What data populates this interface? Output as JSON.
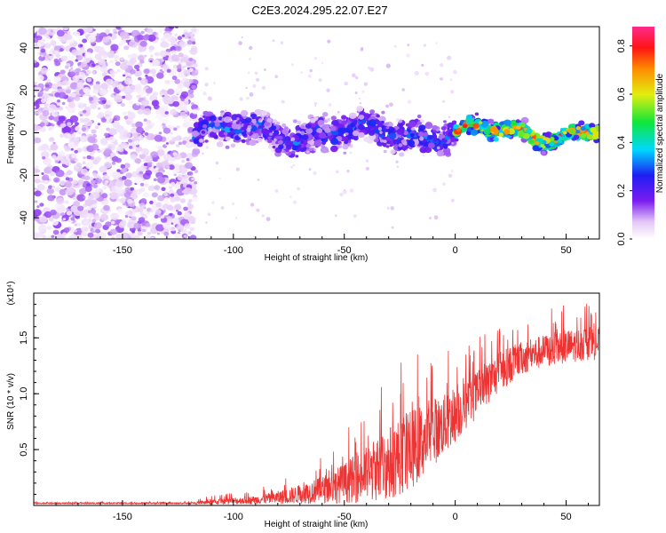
{
  "page": {
    "title": "C2E3.2024.295.22.07.E27"
  },
  "chart_data": [
    {
      "type": "heatmap",
      "xlabel": "Height of straight line (km)",
      "ylabel": "Frequency (Hz)",
      "xlim": [
        -190,
        65
      ],
      "ylim": [
        -50,
        50
      ],
      "xticks": [
        -150,
        -100,
        -50,
        0,
        50
      ],
      "yticks": [
        -40,
        -20,
        0,
        20,
        40
      ],
      "grid": false,
      "colorbar": {
        "label": "Normalized spectral amplitude",
        "range": [
          0.0,
          0.88
        ],
        "ticks": [
          "0.0",
          "0.2",
          "0.4",
          "0.6",
          "0.8"
        ]
      },
      "bands": [
        {
          "x_range": [
            -190,
            -117
          ],
          "freq_center": 0,
          "freq_halfwidth": 50,
          "amplitude": [
            0.03,
            0.15
          ],
          "note": "noise"
        },
        {
          "x_range": [
            -117,
            0
          ],
          "freq_center": 0,
          "freq_halfwidth": 8,
          "amplitude": [
            0.1,
            0.35
          ]
        },
        {
          "x_range": [
            0,
            65
          ],
          "freq_center": 0,
          "freq_halfwidth": 4,
          "amplitude": [
            0.3,
            0.85
          ]
        }
      ]
    },
    {
      "type": "line",
      "xlabel": "Height of straight line (km)",
      "ylabel": "SNR (10 * v/v)",
      "yscale_label": "(x10⁴)",
      "xlim": [
        -190,
        65
      ],
      "ylim": [
        0.0,
        1.9
      ],
      "ylim_units": "x10^4",
      "xticks": [
        -150,
        -100,
        -50,
        0,
        50
      ],
      "yticks": [
        "0.5",
        "1.0",
        "1.5"
      ],
      "color": "#ee3333",
      "grid": false,
      "series": [
        {
          "x": [
            -190,
            -150,
            -120,
            -110,
            -100,
            -90,
            -80,
            -70,
            -60,
            -50,
            -40,
            -30,
            -20,
            -10,
            0,
            10,
            20,
            30,
            40,
            50,
            60,
            65
          ],
          "mean": [
            0.02,
            0.02,
            0.02,
            0.03,
            0.04,
            0.05,
            0.07,
            0.1,
            0.14,
            0.2,
            0.28,
            0.38,
            0.5,
            0.65,
            0.8,
            1.0,
            1.2,
            1.32,
            1.38,
            1.42,
            1.45,
            1.45
          ],
          "spread": [
            0.01,
            0.01,
            0.01,
            0.04,
            0.05,
            0.06,
            0.1,
            0.14,
            0.2,
            0.3,
            0.42,
            0.55,
            0.6,
            0.5,
            0.4,
            0.35,
            0.3,
            0.25,
            0.25,
            0.25,
            0.25,
            0.25
          ]
        }
      ]
    }
  ]
}
